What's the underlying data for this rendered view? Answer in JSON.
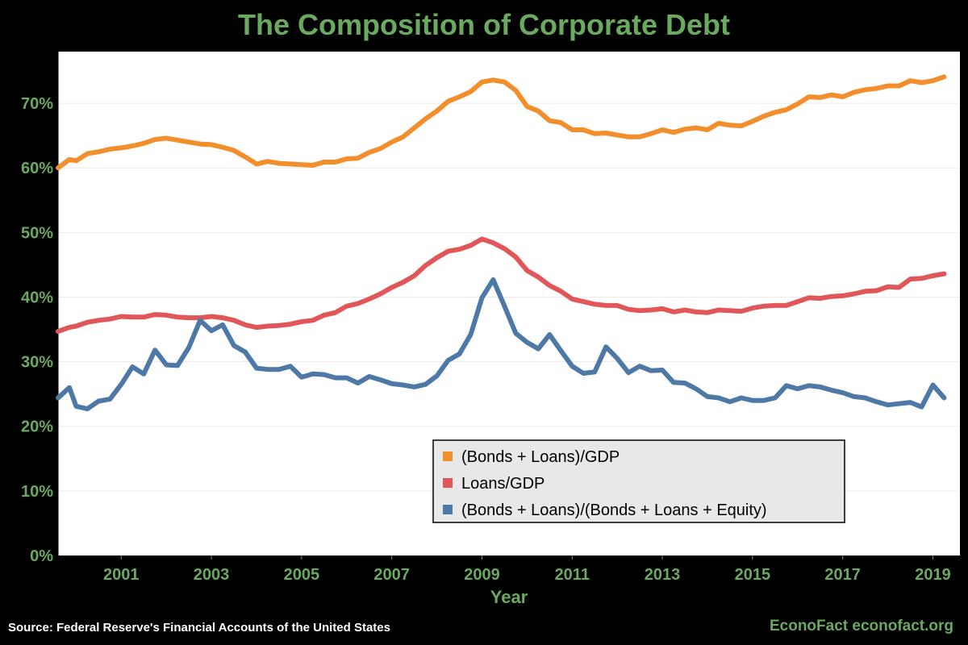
{
  "colors": {
    "background": "#000000",
    "plot_background": "#ffffff",
    "accent_text": "#6aaa5e",
    "series_total": "#f28e2b",
    "series_loans": "#e15759",
    "series_share": "#4e79a7",
    "legend_background": "#e8e8e8"
  },
  "footer": {
    "source": "Source: Federal Reserve's Financial Accounts of the United States",
    "credit": "EconoFact econofact.org"
  },
  "chart_data": {
    "type": "line",
    "title": "The Composition of Corporate Debt",
    "xlabel": "Year",
    "ylabel": "",
    "xlim": [
      1999.6,
      2019.6
    ],
    "ylim": [
      0,
      0.78
    ],
    "x_ticks": [
      2001,
      2003,
      2005,
      2007,
      2009,
      2011,
      2013,
      2015,
      2017,
      2019
    ],
    "y_ticks": [
      0,
      0.1,
      0.2,
      0.3,
      0.4,
      0.5,
      0.6,
      0.7
    ],
    "y_tick_labels": [
      "0%",
      "10%",
      "20%",
      "30%",
      "40%",
      "50%",
      "60%",
      "70%"
    ],
    "grid": "horizontal",
    "legend_position": "bottom-center",
    "x": [
      1999.6,
      1999.85,
      2000.0,
      2000.25,
      2000.5,
      2000.75,
      2001.0,
      2001.25,
      2001.5,
      2001.75,
      2002.0,
      2002.25,
      2002.5,
      2002.75,
      2003.0,
      2003.25,
      2003.5,
      2003.75,
      2004.0,
      2004.25,
      2004.5,
      2004.75,
      2005.0,
      2005.25,
      2005.5,
      2005.75,
      2006.0,
      2006.25,
      2006.5,
      2006.75,
      2007.0,
      2007.25,
      2007.5,
      2007.75,
      2008.0,
      2008.25,
      2008.5,
      2008.75,
      2009.0,
      2009.25,
      2009.5,
      2009.75,
      2010.0,
      2010.25,
      2010.5,
      2010.75,
      2011.0,
      2011.25,
      2011.5,
      2011.75,
      2012.0,
      2012.25,
      2012.5,
      2012.75,
      2013.0,
      2013.25,
      2013.5,
      2013.75,
      2014.0,
      2014.25,
      2014.5,
      2014.75,
      2015.0,
      2015.25,
      2015.5,
      2015.75,
      2016.0,
      2016.25,
      2016.5,
      2016.75,
      2017.0,
      2017.25,
      2017.5,
      2017.75,
      2018.0,
      2018.25,
      2018.5,
      2018.75,
      2019.0,
      2019.25
    ],
    "series": [
      {
        "name": "(Bonds + Loans)/GDP",
        "color": "#f28e2b",
        "values": [
          0.6,
          0.613,
          0.611,
          0.622,
          0.625,
          0.629,
          0.631,
          0.634,
          0.638,
          0.644,
          0.646,
          0.643,
          0.64,
          0.637,
          0.636,
          0.632,
          0.627,
          0.617,
          0.606,
          0.61,
          0.607,
          0.606,
          0.605,
          0.604,
          0.609,
          0.609,
          0.614,
          0.615,
          0.624,
          0.63,
          0.64,
          0.648,
          0.662,
          0.676,
          0.688,
          0.703,
          0.71,
          0.718,
          0.733,
          0.736,
          0.733,
          0.72,
          0.695,
          0.688,
          0.673,
          0.67,
          0.659,
          0.659,
          0.653,
          0.654,
          0.651,
          0.648,
          0.648,
          0.653,
          0.659,
          0.655,
          0.66,
          0.662,
          0.659,
          0.669,
          0.666,
          0.665,
          0.672,
          0.68,
          0.686,
          0.69,
          0.699,
          0.71,
          0.709,
          0.713,
          0.71,
          0.717,
          0.721,
          0.723,
          0.727,
          0.727,
          0.735,
          0.732,
          0.735,
          0.741
        ]
      },
      {
        "name": "Loans/GDP",
        "color": "#e15759",
        "values": [
          0.347,
          0.353,
          0.355,
          0.361,
          0.364,
          0.366,
          0.37,
          0.369,
          0.369,
          0.373,
          0.372,
          0.369,
          0.368,
          0.368,
          0.37,
          0.368,
          0.364,
          0.357,
          0.353,
          0.355,
          0.356,
          0.358,
          0.362,
          0.364,
          0.372,
          0.376,
          0.386,
          0.39,
          0.397,
          0.405,
          0.415,
          0.423,
          0.433,
          0.449,
          0.461,
          0.471,
          0.474,
          0.48,
          0.49,
          0.484,
          0.475,
          0.462,
          0.441,
          0.431,
          0.418,
          0.409,
          0.397,
          0.393,
          0.389,
          0.387,
          0.387,
          0.381,
          0.379,
          0.38,
          0.382,
          0.377,
          0.38,
          0.377,
          0.376,
          0.38,
          0.379,
          0.378,
          0.383,
          0.386,
          0.387,
          0.387,
          0.393,
          0.399,
          0.398,
          0.401,
          0.402,
          0.405,
          0.409,
          0.41,
          0.416,
          0.415,
          0.428,
          0.429,
          0.433,
          0.436
        ]
      },
      {
        "name": "(Bonds + Loans)/(Bonds + Loans + Equity)",
        "color": "#4e79a7",
        "values": [
          0.244,
          0.26,
          0.231,
          0.227,
          0.239,
          0.242,
          0.265,
          0.292,
          0.281,
          0.318,
          0.295,
          0.294,
          0.322,
          0.364,
          0.348,
          0.357,
          0.325,
          0.315,
          0.29,
          0.288,
          0.288,
          0.293,
          0.276,
          0.281,
          0.28,
          0.275,
          0.275,
          0.267,
          0.277,
          0.272,
          0.266,
          0.264,
          0.261,
          0.265,
          0.278,
          0.302,
          0.312,
          0.342,
          0.399,
          0.427,
          0.386,
          0.344,
          0.33,
          0.32,
          0.342,
          0.317,
          0.293,
          0.282,
          0.284,
          0.323,
          0.305,
          0.283,
          0.293,
          0.286,
          0.287,
          0.268,
          0.267,
          0.258,
          0.246,
          0.244,
          0.238,
          0.244,
          0.24,
          0.24,
          0.244,
          0.263,
          0.258,
          0.263,
          0.261,
          0.256,
          0.252,
          0.246,
          0.244,
          0.238,
          0.233,
          0.235,
          0.237,
          0.23,
          0.264,
          0.244
        ]
      }
    ]
  }
}
